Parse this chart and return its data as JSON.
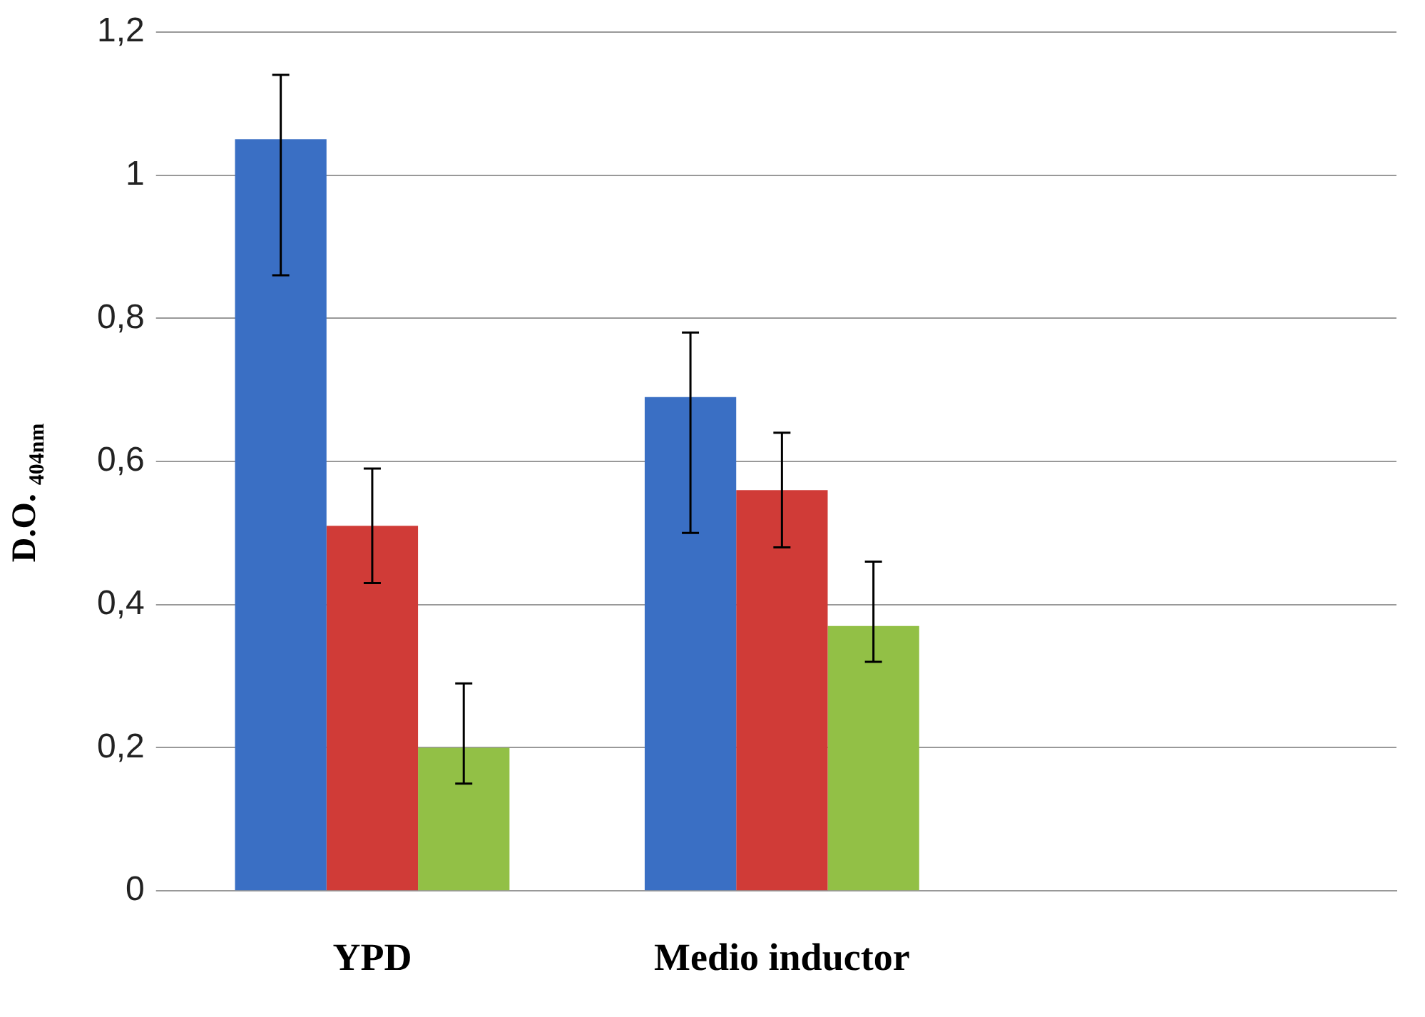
{
  "chart_data": {
    "type": "bar",
    "ylabel": "D.O. $_{404nm}$",
    "categories": [
      "YPD",
      "Medio inductor",
      null
    ],
    "series": [
      {
        "color": "#3a6fc4",
        "values": [
          1.05,
          0.69,
          null
        ],
        "errors": [
          [
            0.86,
            1.14
          ],
          [
            0.5,
            0.78
          ],
          null
        ]
      },
      {
        "color": "#d03b37",
        "values": [
          0.51,
          0.56,
          null
        ],
        "errors": [
          [
            0.43,
            0.59
          ],
          [
            0.48,
            0.64
          ],
          null
        ]
      },
      {
        "color": "#92c046",
        "values": [
          0.2,
          0.37,
          null
        ],
        "errors": [
          [
            0.15,
            0.29
          ],
          [
            0.32,
            0.46
          ],
          null
        ]
      }
    ],
    "ylim": [
      0,
      1.2
    ],
    "yticks": [
      0,
      {
        "value": 0.2,
        "label": "0,2"
      },
      {
        "value": 0.4,
        "label": "0,4"
      },
      {
        "value": 0.6,
        "label": "0,6"
      },
      {
        "value": 0.8,
        "label": "0,8"
      },
      1,
      {
        "value": 1.2,
        "label": "1,2"
      }
    ],
    "grid": "y",
    "legend": false
  }
}
